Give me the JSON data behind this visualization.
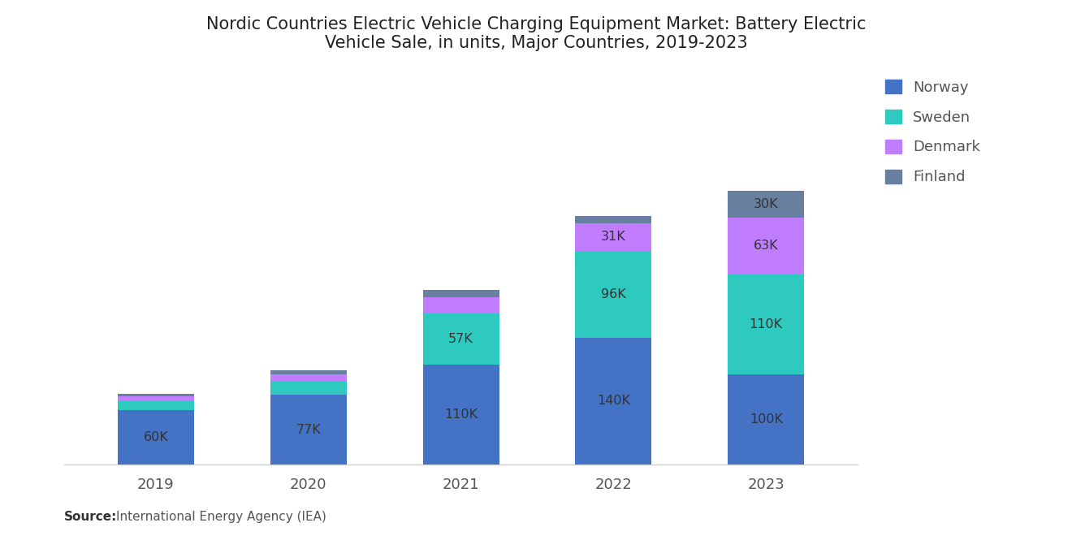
{
  "title": "Nordic Countries Electric Vehicle Charging Equipment Market: Battery Electric\nVehicle Sale, in units, Major Countries, 2019-2023",
  "years": [
    "2019",
    "2020",
    "2021",
    "2022",
    "2023"
  ],
  "norway": [
    60000,
    77000,
    110000,
    140000,
    100000
  ],
  "sweden": [
    10000,
    15000,
    57000,
    96000,
    110000
  ],
  "denmark": [
    5000,
    8000,
    18000,
    31000,
    63000
  ],
  "finland": [
    3000,
    4000,
    8000,
    8000,
    30000
  ],
  "norway_labels": [
    "60K",
    "77K",
    "110K",
    "140K",
    "100K"
  ],
  "sweden_labels": [
    "",
    "",
    "57K",
    "96K",
    "110K"
  ],
  "denmark_labels": [
    "",
    "",
    "",
    "31K",
    "63K"
  ],
  "finland_labels": [
    "",
    "",
    "",
    "",
    "30K"
  ],
  "colors": {
    "norway": "#4472C4",
    "sweden": "#2ECAC0",
    "denmark": "#C07DFF",
    "finland": "#687FA0"
  },
  "legend_labels": [
    "Norway",
    "Sweden",
    "Denmark",
    "Finland"
  ],
  "source_bold": "Source:",
  "source_text": "International Energy Agency (IEA)",
  "background_color": "#FFFFFF",
  "bar_width": 0.5,
  "ylim": [
    0,
    430000
  ],
  "label_fontsize": 11.5,
  "tick_fontsize": 13,
  "title_fontsize": 15,
  "legend_fontsize": 13
}
